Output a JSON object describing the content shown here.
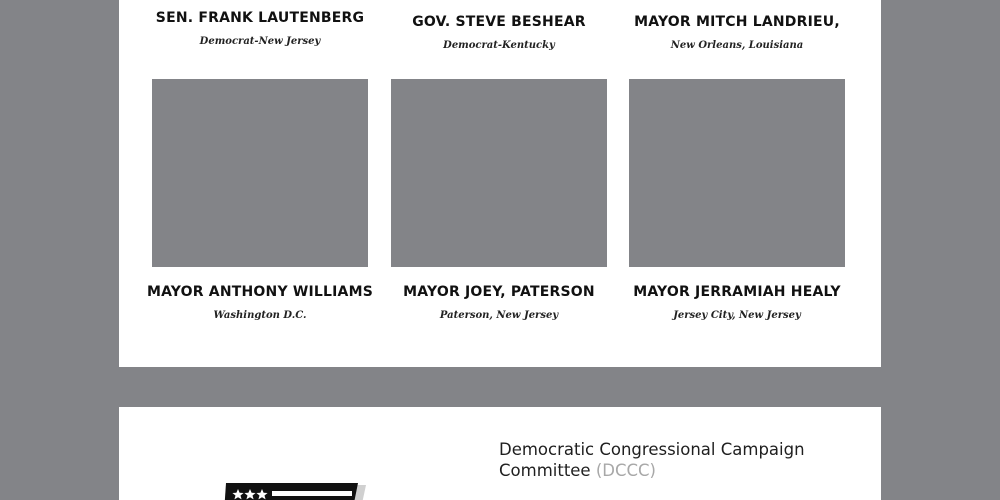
{
  "officials_top": [
    {
      "name": "SEN. FRANK LAUTENBERG",
      "subtitle": "Democrat-New Jersey"
    },
    {
      "name": "GOV. STEVE BESHEAR",
      "subtitle": "Democrat-Kentucky"
    },
    {
      "name": "MAYOR MITCH LANDRIEU,",
      "subtitle": "New Orleans, Louisiana"
    }
  ],
  "officials_bottom": [
    {
      "name": "MAYOR ANTHONY WILLIAMS",
      "subtitle": "Washington D.C."
    },
    {
      "name": "MAYOR JOEY, PATERSON",
      "subtitle": "Paterson, New Jersey"
    },
    {
      "name": "MAYOR JERRAMIAH HEALY",
      "subtitle": "Jersey City, New Jersey"
    }
  ],
  "committee": {
    "name": "Democratic Congressional Campaign Committee",
    "abbreviation": "(DCCC)",
    "logo_icon": "dccc-flag-logo-icon"
  },
  "colors": {
    "background": "#838488",
    "panel": "#ffffff",
    "photo_placeholder": "#838488",
    "text": "#111111",
    "abbreviation": "#a8a8a8"
  }
}
